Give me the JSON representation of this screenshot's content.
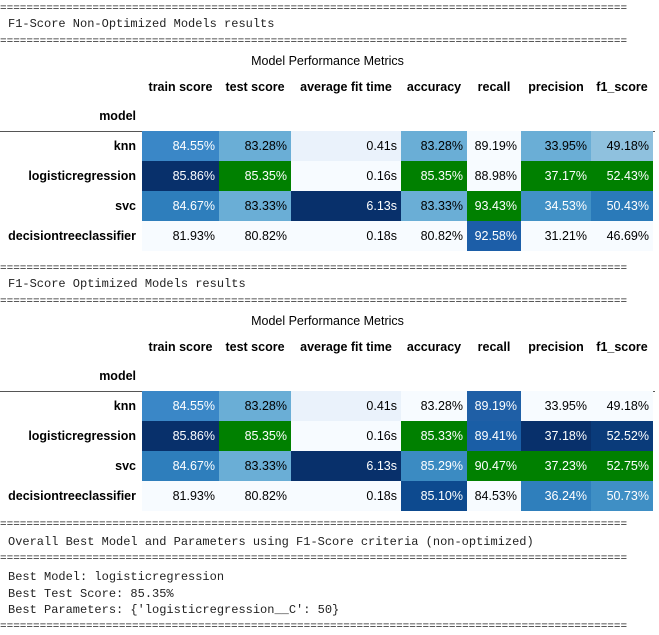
{
  "separator": "===============================================================================================",
  "sections": [
    {
      "heading": "F1-Score Non-Optimized Models results",
      "table": {
        "caption": "Model Performance Metrics",
        "index_name": "model",
        "columns": [
          "train score",
          "test score",
          "average fit time",
          "accuracy",
          "recall",
          "precision",
          "f1_score"
        ],
        "rows": [
          {
            "label": "knn",
            "cells": [
              "84.55%",
              "83.28%",
              "0.41s",
              "83.28%",
              "89.19%",
              "33.95%",
              "49.18%"
            ],
            "colors": [
              "#3a87c7",
              "#6aaed6",
              "#eaf2fb",
              "#6aaed6",
              "#f7fbff",
              "#6aaed6",
              "#8fc1de"
            ]
          },
          {
            "label": "logisticregression",
            "cells": [
              "85.86%",
              "85.35%",
              "0.16s",
              "85.35%",
              "88.98%",
              "37.17%",
              "52.43%"
            ],
            "colors": [
              "#08306b",
              "#008000",
              "#f7fbff",
              "#008000",
              "#f7fbff",
              "#008000",
              "#008000"
            ]
          },
          {
            "label": "svc",
            "cells": [
              "84.67%",
              "83.33%",
              "6.13s",
              "83.33%",
              "93.43%",
              "34.53%",
              "50.43%"
            ],
            "colors": [
              "#2e7ebc",
              "#6aaed6",
              "#08306b",
              "#6aaed6",
              "#008000",
              "#4191c6",
              "#2a7ab9"
            ]
          },
          {
            "label": "decisiontreeclassifier",
            "cells": [
              "81.93%",
              "80.82%",
              "0.18s",
              "80.82%",
              "92.58%",
              "31.21%",
              "46.69%"
            ],
            "colors": [
              "#f7fbff",
              "#f7fbff",
              "#f7fbff",
              "#f7fbff",
              "#1c5ea8",
              "#f7fbff",
              "#f7fbff"
            ]
          }
        ]
      }
    },
    {
      "heading": "F1-Score Optimized Models results",
      "table": {
        "caption": "Model Performance Metrics",
        "index_name": "model",
        "columns": [
          "train score",
          "test score",
          "average fit time",
          "accuracy",
          "recall",
          "precision",
          "f1_score"
        ],
        "rows": [
          {
            "label": "knn",
            "cells": [
              "84.55%",
              "83.28%",
              "0.41s",
              "83.28%",
              "89.19%",
              "33.95%",
              "49.18%"
            ],
            "colors": [
              "#3a87c7",
              "#6aaed6",
              "#eaf2fb",
              "#f7fbff",
              "#1f5fa6",
              "#f7fbff",
              "#f7fbff"
            ]
          },
          {
            "label": "logisticregression",
            "cells": [
              "85.86%",
              "85.35%",
              "0.16s",
              "85.33%",
              "89.41%",
              "37.18%",
              "52.52%"
            ],
            "colors": [
              "#08306b",
              "#008000",
              "#f7fbff",
              "#008000",
              "#1a5ea6",
              "#08306b",
              "#0a3b7a"
            ]
          },
          {
            "label": "svc",
            "cells": [
              "84.67%",
              "83.33%",
              "6.13s",
              "85.29%",
              "90.47%",
              "37.23%",
              "52.75%"
            ],
            "colors": [
              "#2e7ebc",
              "#6aaed6",
              "#08306b",
              "#3b8bc2",
              "#008000",
              "#008000",
              "#008000"
            ]
          },
          {
            "label": "decisiontreeclassifier",
            "cells": [
              "81.93%",
              "80.82%",
              "0.18s",
              "85.10%",
              "84.53%",
              "36.24%",
              "50.73%"
            ],
            "colors": [
              "#f7fbff",
              "#f7fbff",
              "#f7fbff",
              "#0d4a8f",
              "#f7fbff",
              "#2f7fbc",
              "#3f8fc5"
            ]
          }
        ]
      }
    }
  ],
  "summary": {
    "heading": "Overall Best Model and Parameters using F1-Score criteria (non-optimized)",
    "lines": [
      "Best Model: logisticregression",
      "Best Test Score: 85.35%",
      "Best Parameters: {'logisticregression__C': 50}"
    ]
  }
}
